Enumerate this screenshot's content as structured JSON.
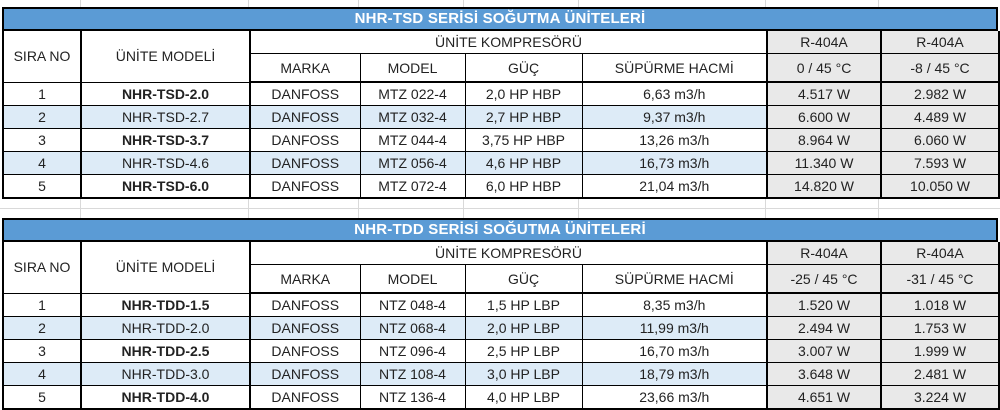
{
  "colors": {
    "accent_blue": "#5B9BD5",
    "banded_row_blue": "#DDEBF7",
    "capacity_column_gray": "#E9E9E9",
    "border_black": "#000000",
    "title_text": "#FFFFFF"
  },
  "tables": [
    {
      "title": "NHR-TSD SERİSİ SOĞUTMA ÜNİTELERİ",
      "headers": {
        "sira_no": "SIRA NO",
        "unite_modeli": "ÜNİTE MODELİ",
        "kompresor_group": "ÜNİTE KOMPRESÖRÜ",
        "marka": "MARKA",
        "model": "MODEL",
        "guc": "GÜÇ",
        "supurme_hacmi": "SÜPÜRME HACMİ",
        "refrigerant_1": "R-404A",
        "refrigerant_2": "R-404A",
        "condition_1": "0 / 45 °C",
        "condition_2": "-8 / 45 °C"
      },
      "rows": [
        {
          "sira": "1",
          "unite": "NHR-TSD-2.0",
          "bold": true,
          "marka": "DANFOSS",
          "model": "MTZ 022-4",
          "guc": "2,0 HP HBP",
          "hacim": "6,63 m3/h",
          "kapasite_1": "4.517 W",
          "kapasite_2": "2.982 W"
        },
        {
          "sira": "2",
          "unite": "NHR-TSD-2.7",
          "bold": false,
          "marka": "DANFOSS",
          "model": "MTZ 032-4",
          "guc": "2,7 HP HBP",
          "hacim": "9,37 m3/h",
          "kapasite_1": "6.600 W",
          "kapasite_2": "4.489 W"
        },
        {
          "sira": "3",
          "unite": "NHR-TSD-3.7",
          "bold": true,
          "marka": "DANFOSS",
          "model": "MTZ 044-4",
          "guc": "3,75 HP HBP",
          "hacim": "13,26 m3/h",
          "kapasite_1": "8.964 W",
          "kapasite_2": "6.060 W"
        },
        {
          "sira": "4",
          "unite": "NHR-TSD-4.6",
          "bold": false,
          "marka": "DANFOSS",
          "model": "MTZ 056-4",
          "guc": "4,6 HP HBP",
          "hacim": "16,73 m3/h",
          "kapasite_1": "11.340 W",
          "kapasite_2": "7.593 W"
        },
        {
          "sira": "5",
          "unite": "NHR-TSD-6.0",
          "bold": true,
          "marka": "DANFOSS",
          "model": "MTZ 072-4",
          "guc": "6,0 HP HBP",
          "hacim": "21,04 m3/h",
          "kapasite_1": "14.820 W",
          "kapasite_2": "10.050 W"
        }
      ]
    },
    {
      "title": "NHR-TDD SERİSİ SOĞUTMA ÜNİTELERİ",
      "headers": {
        "sira_no": "SIRA NO",
        "unite_modeli": "ÜNİTE MODELİ",
        "kompresor_group": "ÜNİTE KOMPRESÖRÜ",
        "marka": "MARKA",
        "model": "MODEL",
        "guc": "GÜÇ",
        "supurme_hacmi": "SÜPÜRME HACMİ",
        "refrigerant_1": "R-404A",
        "refrigerant_2": "R-404A",
        "condition_1": "-25 / 45 °C",
        "condition_2": "-31 / 45 °C"
      },
      "rows": [
        {
          "sira": "1",
          "unite": "NHR-TDD-1.5",
          "bold": true,
          "marka": "DANFOSS",
          "model": "NTZ 048-4",
          "guc": "1,5 HP LBP",
          "hacim": "8,35 m3/h",
          "kapasite_1": "1.520 W",
          "kapasite_2": "1.018 W"
        },
        {
          "sira": "2",
          "unite": "NHR-TDD-2.0",
          "bold": false,
          "marka": "DANFOSS",
          "model": "NTZ 068-4",
          "guc": "2,0 HP LBP",
          "hacim": "11,99 m3/h",
          "kapasite_1": "2.494 W",
          "kapasite_2": "1.753 W"
        },
        {
          "sira": "3",
          "unite": "NHR-TDD-2.5",
          "bold": true,
          "marka": "DANFOSS",
          "model": "NTZ 096-4",
          "guc": "2,5 HP LBP",
          "hacim": "16,70 m3/h",
          "kapasite_1": "3.007 W",
          "kapasite_2": "1.999 W"
        },
        {
          "sira": "4",
          "unite": "NHR-TDD-3.0",
          "bold": false,
          "marka": "DANFOSS",
          "model": "NTZ 108-4",
          "guc": "3,0 HP LBP",
          "hacim": "18,79 m3/h",
          "kapasite_1": "3.648 W",
          "kapasite_2": "2.481 W"
        },
        {
          "sira": "5",
          "unite": "NHR-TDD-4.0",
          "bold": true,
          "marka": "DANFOSS",
          "model": "NTZ 136-4",
          "guc": "4,0 HP LBP",
          "hacim": "23,66 m3/h",
          "kapasite_1": "4.651 W",
          "kapasite_2": "3.224 W"
        }
      ]
    }
  ]
}
